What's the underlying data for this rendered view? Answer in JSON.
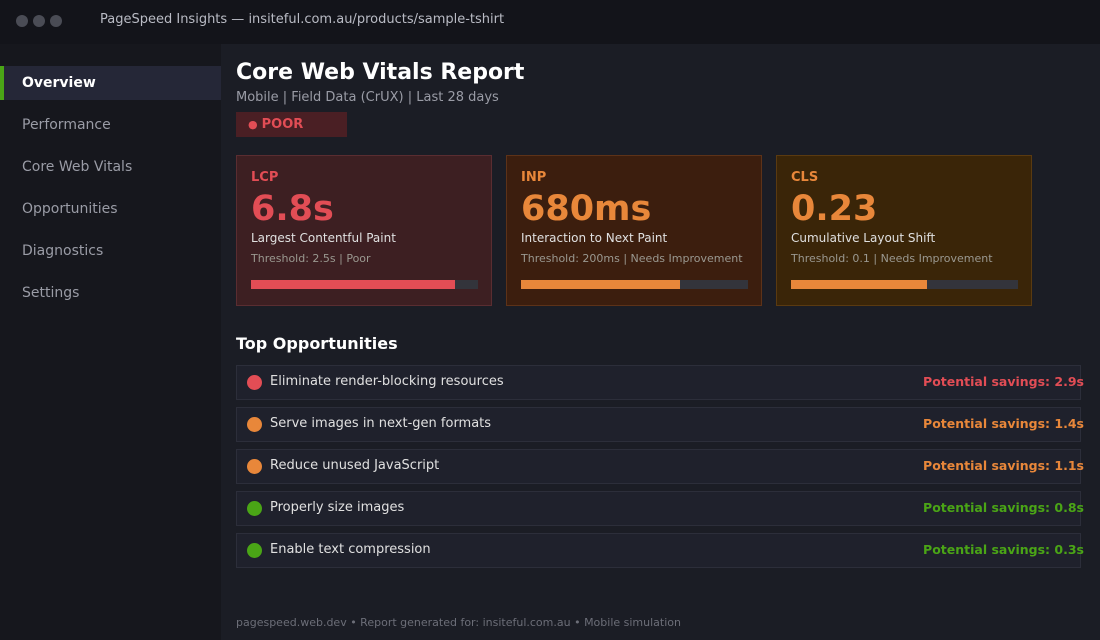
{
  "window": {
    "title": "PageSpeed Insights — insiteful.com.au/products/sample-tshirt"
  },
  "sidebar": {
    "items": [
      {
        "label": "Overview",
        "active": true
      },
      {
        "label": "Performance",
        "active": false
      },
      {
        "label": "Core Web Vitals",
        "active": false
      },
      {
        "label": "Opportunities",
        "active": false
      },
      {
        "label": "Diagnostics",
        "active": false
      },
      {
        "label": "Settings",
        "active": false
      }
    ]
  },
  "header": {
    "title": "Core Web Vitals Report",
    "subtitle": "Mobile  |  Field Data (CrUX)  |  Last 28 days",
    "badge_bullet": "●",
    "badge": "POOR"
  },
  "metrics": [
    {
      "abbr": "LCP",
      "value": "6.8s",
      "name": "Largest Contentful Paint",
      "meta": "Threshold: 2.5s  |  Poor",
      "bar_fraction": 0.9,
      "color": "#e24d55"
    },
    {
      "abbr": "INP",
      "value": "680ms",
      "name": "Interaction to Next Paint",
      "meta": "Threshold: 200ms  |  Needs Improvement",
      "bar_fraction": 0.7,
      "color": "#e8873a"
    },
    {
      "abbr": "CLS",
      "value": "0.23",
      "name": "Cumulative Layout Shift",
      "meta": "Threshold: 0.1  |  Needs Improvement",
      "bar_fraction": 0.6,
      "color": "#e8873a"
    }
  ],
  "opportunities": {
    "title": "Top Opportunities",
    "items": [
      {
        "label": "Eliminate render-blocking resources",
        "savings": "Potential savings: 2.9s",
        "color": "#e24d55"
      },
      {
        "label": "Serve images in next-gen formats",
        "savings": "Potential savings: 1.4s",
        "color": "#e8873a"
      },
      {
        "label": "Reduce unused JavaScript",
        "savings": "Potential savings: 1.1s",
        "color": "#e8873a"
      },
      {
        "label": "Properly size images",
        "savings": "Potential savings: 0.8s",
        "color": "#4aa516"
      },
      {
        "label": "Enable text compression",
        "savings": "Potential savings: 0.3s",
        "color": "#4aa516"
      }
    ]
  },
  "footer": {
    "text": "pagespeed.web.dev  •  Report generated for: insiteful.com.au  •  Mobile simulation"
  }
}
